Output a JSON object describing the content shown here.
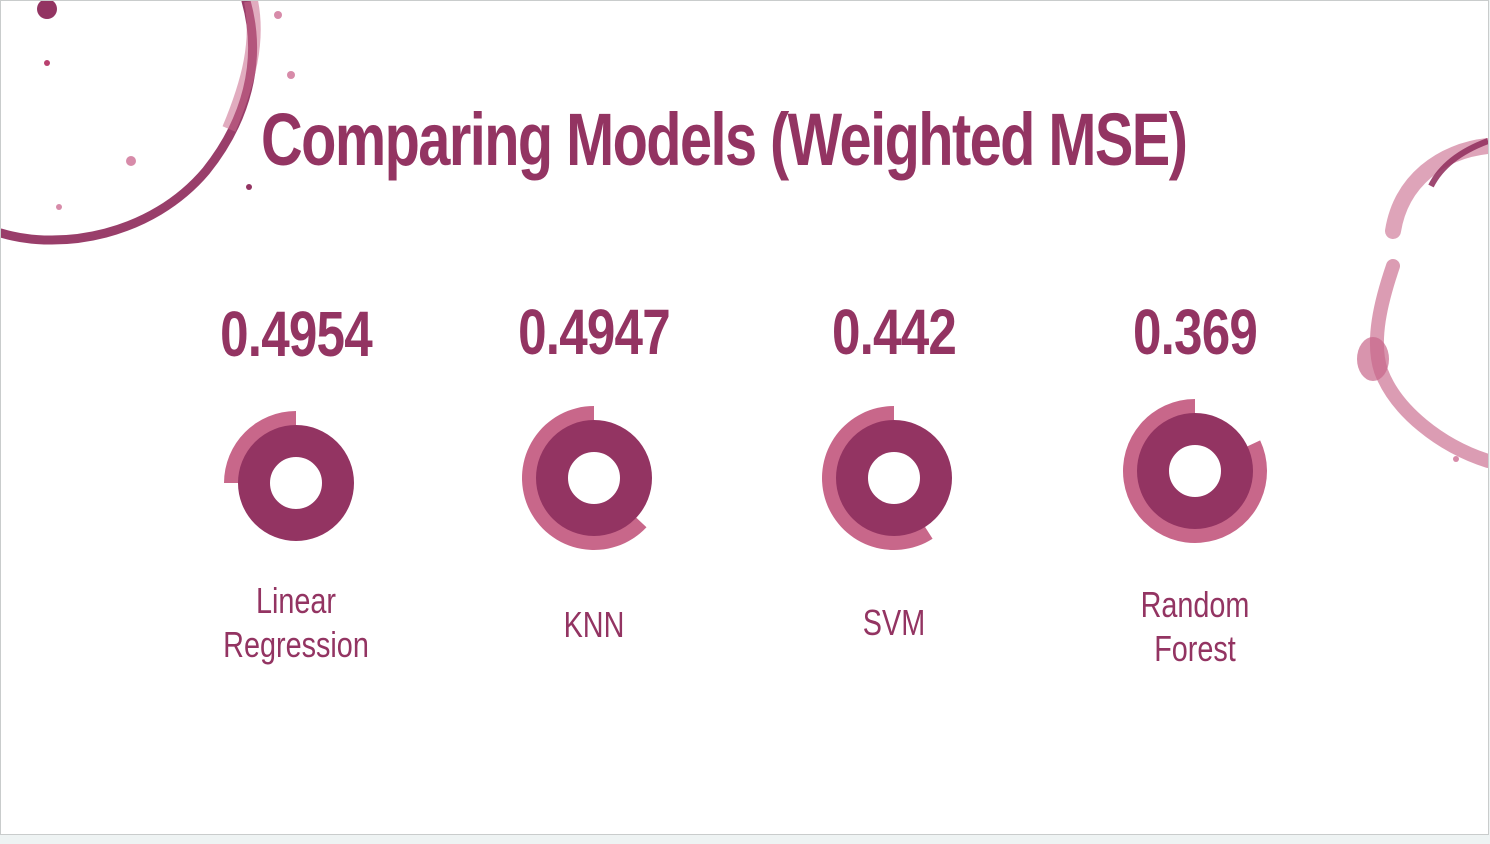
{
  "slide": {
    "title": "Comparing Models (Weighted MSE)"
  },
  "colors": {
    "primary": "#933462",
    "secondary": "#c8678a",
    "stain": "#b9416f",
    "background": "#ffffff"
  },
  "chart_data": {
    "type": "donut",
    "title": "Comparing Models (Weighted MSE)",
    "metric": "Weighted MSE",
    "categories": [
      "Linear Regression",
      "KNN",
      "SVM",
      "Random Forest"
    ],
    "value_labels": [
      "0.4954",
      "0.4947",
      "0.442",
      "0.369"
    ],
    "values": [
      0.4954,
      0.4947,
      0.442,
      0.369
    ],
    "outer_arc_fraction": [
      0.25,
      0.63,
      0.59,
      0.82
    ],
    "series": [
      {
        "values": [
          0.4954,
          0.4947,
          0.442,
          0.369
        ]
      }
    ]
  },
  "models": [
    {
      "value": "0.4954",
      "label": "Linear\nRegression"
    },
    {
      "value": "0.4947",
      "label": "KNN"
    },
    {
      "value": "0.442",
      "label": "SVM"
    },
    {
      "value": "0.369",
      "label": "Random\nForest"
    }
  ]
}
